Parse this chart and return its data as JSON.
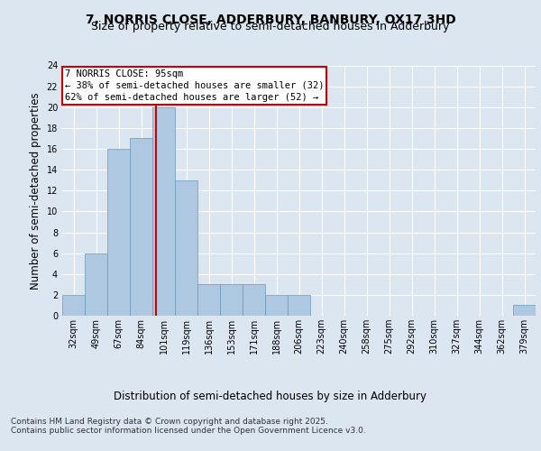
{
  "title_line1": "7, NORRIS CLOSE, ADDERBURY, BANBURY, OX17 3HD",
  "title_line2": "Size of property relative to semi-detached houses in Adderbury",
  "xlabel": "Distribution of semi-detached houses by size in Adderbury",
  "ylabel": "Number of semi-detached properties",
  "footer_line1": "Contains HM Land Registry data © Crown copyright and database right 2025.",
  "footer_line2": "Contains public sector information licensed under the Open Government Licence v3.0.",
  "bin_labels": [
    "32sqm",
    "49sqm",
    "67sqm",
    "84sqm",
    "101sqm",
    "119sqm",
    "136sqm",
    "153sqm",
    "171sqm",
    "188sqm",
    "206sqm",
    "223sqm",
    "240sqm",
    "258sqm",
    "275sqm",
    "292sqm",
    "310sqm",
    "327sqm",
    "344sqm",
    "362sqm",
    "379sqm"
  ],
  "values": [
    2,
    6,
    16,
    17,
    20,
    13,
    3,
    3,
    3,
    2,
    2,
    0,
    0,
    0,
    0,
    0,
    0,
    0,
    0,
    0,
    1
  ],
  "bar_color": "#adc8e0",
  "bar_edge_color": "#6a9ab8",
  "bar_edge_width": 0.5,
  "property_label": "7 NORRIS CLOSE: 95sqm",
  "annotation_line1": "← 38% of semi-detached houses are smaller (32)",
  "annotation_line2": "62% of semi-detached houses are larger (52) →",
  "red_line_color": "#cc0000",
  "annotation_box_edge": "#cc0000",
  "ylim": [
    0,
    24
  ],
  "yticks": [
    0,
    2,
    4,
    6,
    8,
    10,
    12,
    14,
    16,
    18,
    20,
    22,
    24
  ],
  "bg_color": "#dce6f0",
  "plot_bg_color": "#dce6f0",
  "grid_color": "#ffffff",
  "title_fontsize": 10,
  "subtitle_fontsize": 9,
  "axis_label_fontsize": 8.5,
  "tick_fontsize": 7,
  "annotation_fontsize": 7.5,
  "footer_fontsize": 6.5,
  "red_line_x": 3.647
}
